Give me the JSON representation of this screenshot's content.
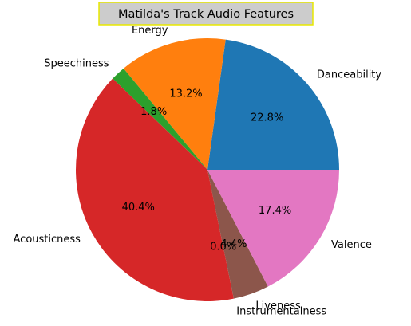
{
  "chart_data": {
    "type": "pie",
    "title": "Matilda's Track Audio Features",
    "slices": [
      {
        "label": "Danceability",
        "percent": 22.8,
        "pct_label": "22.8%",
        "color": "#1f77b4"
      },
      {
        "label": "Energy",
        "percent": 13.2,
        "pct_label": "13.2%",
        "color": "#ff7f0e"
      },
      {
        "label": "Speechiness",
        "percent": 1.8,
        "pct_label": "1.8%",
        "color": "#2ca02c"
      },
      {
        "label": "Acousticness",
        "percent": 40.4,
        "pct_label": "40.4%",
        "color": "#d62728"
      },
      {
        "label": "Instrumentalness",
        "percent": 0.0,
        "pct_label": "0.0%",
        "color": "#9467bd"
      },
      {
        "label": "Liveness",
        "percent": 4.4,
        "pct_label": "4.4%",
        "color": "#8c564b"
      },
      {
        "label": "Valence",
        "percent": 17.4,
        "pct_label": "17.4%",
        "color": "#e377c2"
      }
    ],
    "start_angle": 0,
    "direction": "counterclockwise",
    "legend": "none"
  }
}
